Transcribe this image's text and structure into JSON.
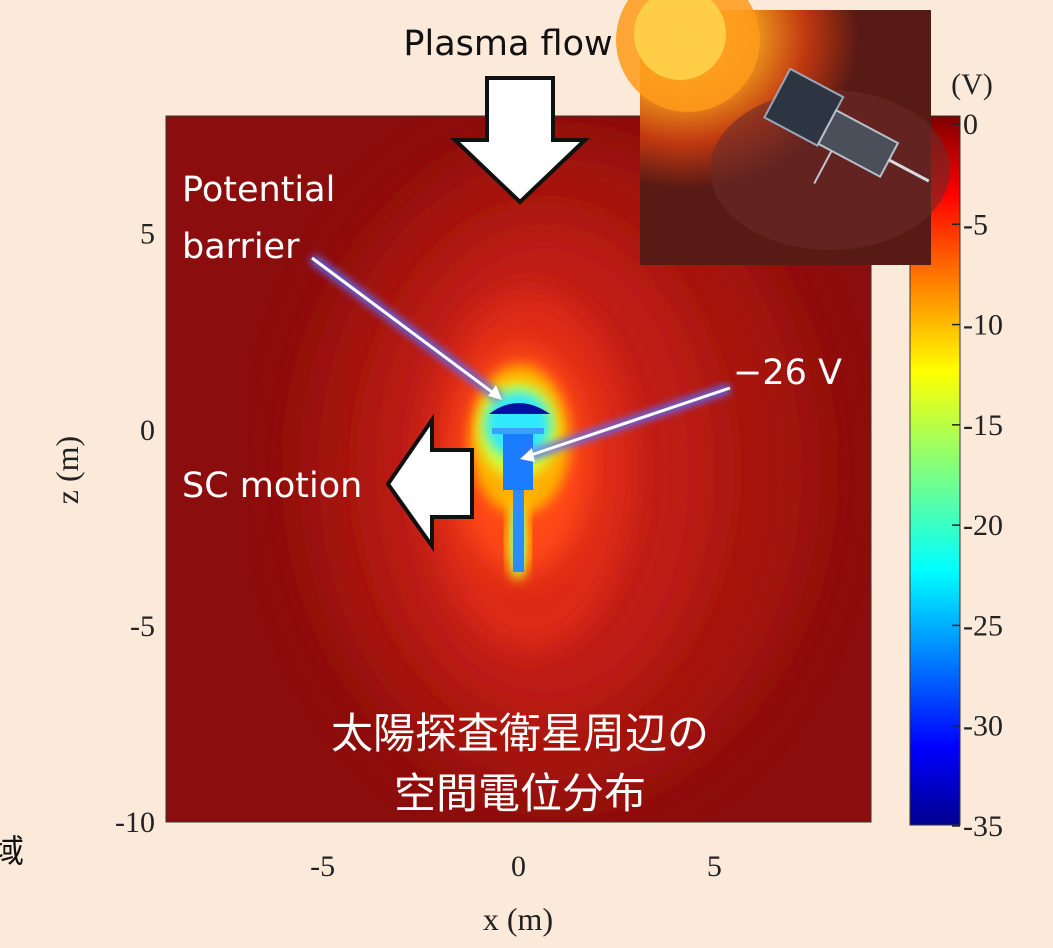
{
  "chart_data": {
    "type": "heatmap",
    "title": "",
    "xlabel": "x (m)",
    "ylabel": "z (m)",
    "xlim": [
      -9,
      9
    ],
    "ylim": [
      -10,
      8
    ],
    "x_ticks": [
      "-5",
      "0",
      "5"
    ],
    "y_ticks": [
      "5",
      "0",
      "-5",
      "-10"
    ],
    "colorbar": {
      "unit": "(V)",
      "range": [
        -35,
        0
      ],
      "ticks": [
        "0",
        "-5",
        "-10",
        "-15",
        "-20",
        "-25",
        "-30",
        "-35"
      ],
      "colormap": "jet"
    },
    "potential_minimum": {
      "x": 0,
      "z": -0.5,
      "value": -26
    },
    "barrier_location": {
      "x": 0,
      "z": 0.6
    },
    "annotations": {
      "plasma_flow": "Plasma flow",
      "potential_barrier_line1": "Potential",
      "potential_barrier_line2": "barrier",
      "sc_potential": "−26 V",
      "sc_motion": "SC motion",
      "caption_line1": "太陽探査衛星周辺の",
      "caption_line2": "空間電位分布"
    },
    "edge_fragment": "域",
    "inset_image": "spacecraft-near-sun-illustration"
  },
  "colors": {
    "background": "#fbe9da",
    "field_ambient": "#8a0b0b",
    "arrow_fill": "#ffffff"
  }
}
